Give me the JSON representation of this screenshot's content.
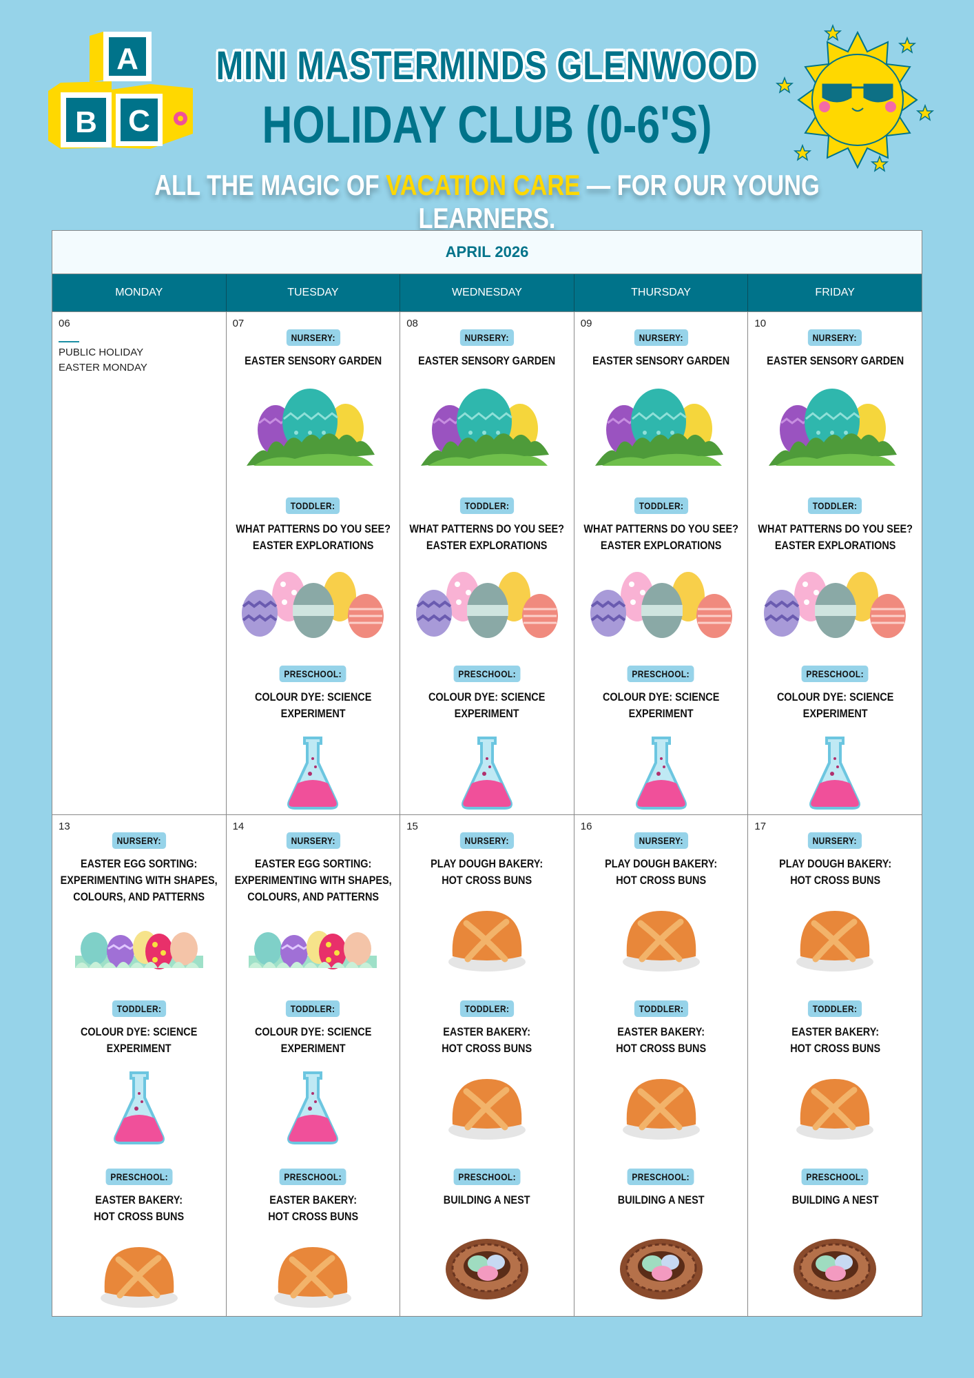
{
  "header": {
    "title": "MINI MASTERMINDS GLENWOOD",
    "subtitle": "HOLIDAY CLUB (0-6'S)",
    "tagline_pre": "ALL THE MAGIC OF ",
    "tagline_highlight": "VACATION CARE",
    "tagline_post": " — FOR OUR YOUNG LEARNERS.",
    "blocks_letters": [
      "A",
      "B",
      "C"
    ]
  },
  "colors": {
    "background": "#96d3e9",
    "primary": "#00738a",
    "highlight": "#ffd800",
    "badge": "#96d3e9"
  },
  "calendar": {
    "month": "APRIL 2026",
    "days": [
      "MONDAY",
      "TUESDAY",
      "WEDNESDAY",
      "THURSDAY",
      "FRIDAY"
    ],
    "weeks": [
      [
        {
          "date": "06",
          "holiday": [
            "PUBLIC HOLIDAY",
            "EASTER MONDAY"
          ],
          "activities": []
        },
        {
          "date": "07",
          "activities": [
            {
              "group": "NURSERY:",
              "title": "EASTER SENSORY GARDEN",
              "icon": "eggs-in-grass"
            },
            {
              "group": "TODDLER:",
              "title": "WHAT PATTERNS DO YOU SEE?\nEASTER EXPLORATIONS",
              "icon": "patterned-eggs"
            },
            {
              "group": "PRESCHOOL:",
              "title": "COLOUR DYE: SCIENCE\nEXPERIMENT",
              "icon": "flask"
            }
          ]
        },
        {
          "date": "08",
          "activities": [
            {
              "group": "NURSERY:",
              "title": "EASTER SENSORY GARDEN",
              "icon": "eggs-in-grass"
            },
            {
              "group": "TODDLER:",
              "title": "WHAT PATTERNS DO YOU SEE?\nEASTER EXPLORATIONS",
              "icon": "patterned-eggs"
            },
            {
              "group": "PRESCHOOL:",
              "title": "COLOUR DYE: SCIENCE\nEXPERIMENT",
              "icon": "flask"
            }
          ]
        },
        {
          "date": "09",
          "activities": [
            {
              "group": "NURSERY:",
              "title": "EASTER SENSORY GARDEN",
              "icon": "eggs-in-grass"
            },
            {
              "group": "TODDLER:",
              "title": "WHAT PATTERNS DO YOU SEE?\nEASTER EXPLORATIONS",
              "icon": "patterned-eggs"
            },
            {
              "group": "PRESCHOOL:",
              "title": "COLOUR DYE: SCIENCE\nEXPERIMENT",
              "icon": "flask"
            }
          ]
        },
        {
          "date": "10",
          "activities": [
            {
              "group": "NURSERY:",
              "title": "EASTER SENSORY GARDEN",
              "icon": "eggs-in-grass"
            },
            {
              "group": "TODDLER:",
              "title": "WHAT PATTERNS DO YOU SEE?\nEASTER EXPLORATIONS",
              "icon": "patterned-eggs"
            },
            {
              "group": "PRESCHOOL:",
              "title": "COLOUR DYE: SCIENCE\nEXPERIMENT",
              "icon": "flask"
            }
          ]
        }
      ],
      [
        {
          "date": "13",
          "activities": [
            {
              "group": "NURSERY:",
              "title": "EASTER EGG SORTING:\nEXPERIMENTING WITH SHAPES,\nCOLOURS, AND PATTERNS",
              "icon": "egg-row"
            },
            {
              "group": "TODDLER:",
              "title": "COLOUR DYE: SCIENCE\nEXPERIMENT",
              "icon": "flask"
            },
            {
              "group": "PRESCHOOL:",
              "title": "EASTER BAKERY:\nHOT CROSS BUNS",
              "icon": "hot-cross-bun"
            }
          ]
        },
        {
          "date": "14",
          "activities": [
            {
              "group": "NURSERY:",
              "title": "EASTER EGG SORTING:\nEXPERIMENTING WITH SHAPES,\nCOLOURS, AND PATTERNS",
              "icon": "egg-row"
            },
            {
              "group": "TODDLER:",
              "title": "COLOUR DYE: SCIENCE\nEXPERIMENT",
              "icon": "flask"
            },
            {
              "group": "PRESCHOOL:",
              "title": "EASTER BAKERY:\nHOT CROSS BUNS",
              "icon": "hot-cross-bun"
            }
          ]
        },
        {
          "date": "15",
          "activities": [
            {
              "group": "NURSERY:",
              "title": "PLAY DOUGH BAKERY:\nHOT CROSS BUNS",
              "icon": "hot-cross-bun"
            },
            {
              "group": "TODDLER:",
              "title": "EASTER BAKERY:\nHOT CROSS BUNS",
              "icon": "hot-cross-bun"
            },
            {
              "group": "PRESCHOOL:",
              "title": "BUILDING A NEST",
              "icon": "nest"
            }
          ]
        },
        {
          "date": "16",
          "activities": [
            {
              "group": "NURSERY:",
              "title": "PLAY DOUGH BAKERY:\nHOT CROSS BUNS",
              "icon": "hot-cross-bun"
            },
            {
              "group": "TODDLER:",
              "title": "EASTER BAKERY:\nHOT CROSS BUNS",
              "icon": "hot-cross-bun"
            },
            {
              "group": "PRESCHOOL:",
              "title": "BUILDING A NEST",
              "icon": "nest"
            }
          ]
        },
        {
          "date": "17",
          "activities": [
            {
              "group": "NURSERY:",
              "title": "PLAY DOUGH BAKERY:\nHOT CROSS BUNS",
              "icon": "hot-cross-bun"
            },
            {
              "group": "TODDLER:",
              "title": "EASTER BAKERY:\nHOT CROSS BUNS",
              "icon": "hot-cross-bun"
            },
            {
              "group": "PRESCHOOL:",
              "title": "BUILDING A NEST",
              "icon": "nest"
            }
          ]
        }
      ]
    ]
  }
}
